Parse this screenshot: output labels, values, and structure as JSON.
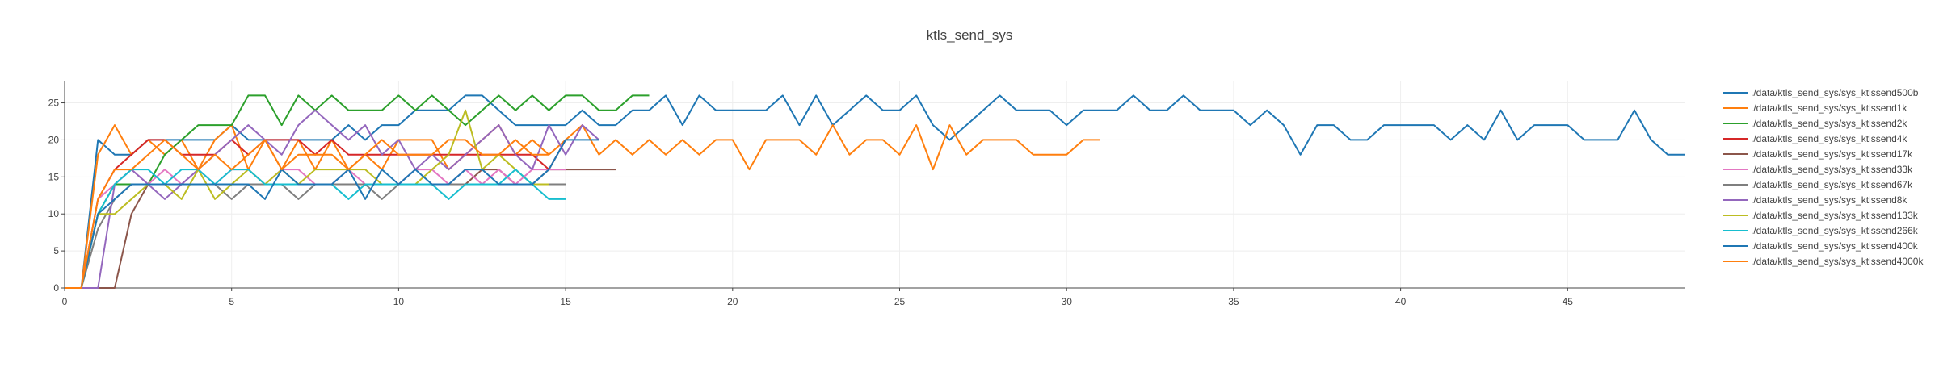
{
  "chart_data": {
    "type": "line",
    "title": "ktls_send_sys",
    "xlabel": "",
    "ylabel": "",
    "xlim": [
      0,
      48.5
    ],
    "ylim": [
      0,
      28
    ],
    "x_ticks": [
      0,
      5,
      10,
      15,
      20,
      25,
      30,
      35,
      40,
      45
    ],
    "y_ticks": [
      0,
      5,
      10,
      15,
      20,
      25
    ],
    "grid": true,
    "legend_position": "right",
    "series": [
      {
        "name": "./data/ktls_send_sys/sys_ktlssend500b",
        "color": "#1f77b4",
        "x": [
          0,
          0.5,
          1,
          1.5,
          2,
          2.5,
          3,
          3.5,
          4,
          4.5,
          5,
          5.5,
          6,
          6.5,
          7,
          7.5,
          8,
          8.5,
          9,
          9.5,
          10,
          10.5,
          11,
          11.5,
          12,
          12.5,
          13,
          13.5,
          14,
          14.5,
          15,
          15.5,
          16,
          16.5,
          17,
          17.5,
          18,
          18.5,
          19,
          19.5,
          20,
          20.5,
          21,
          21.5,
          22,
          22.5,
          23,
          23.5,
          24,
          24.5,
          25,
          25.5,
          26,
          26.5,
          27,
          27.5,
          28,
          28.5,
          29,
          29.5,
          30,
          30.5,
          31,
          31.5,
          32,
          32.5,
          33,
          33.5,
          34,
          34.5,
          35,
          35.5,
          36,
          36.5,
          37,
          37.5,
          38,
          38.5,
          39,
          39.5,
          40,
          40.5,
          41,
          41.5,
          42,
          42.5,
          43,
          43.5,
          44,
          44.5,
          45,
          45.5,
          46,
          46.5,
          47,
          47.5,
          48,
          48.5
        ],
        "y": [
          0,
          0,
          20,
          18,
          18,
          20,
          20,
          20,
          20,
          20,
          22,
          20,
          20,
          20,
          20,
          20,
          20,
          22,
          20,
          22,
          22,
          24,
          24,
          24,
          26,
          26,
          24,
          22,
          22,
          22,
          22,
          24,
          22,
          22,
          24,
          24,
          26,
          22,
          26,
          24,
          24,
          24,
          24,
          26,
          22,
          26,
          22,
          24,
          26,
          24,
          24,
          26,
          22,
          20,
          22,
          24,
          26,
          24,
          24,
          24,
          22,
          24,
          24,
          24,
          26,
          24,
          24,
          26,
          24,
          24,
          24,
          22,
          24,
          22,
          18,
          22,
          22,
          20,
          20,
          22,
          22,
          22,
          22,
          20,
          22,
          20,
          24,
          20,
          22,
          22,
          22,
          20,
          20,
          20,
          24,
          20,
          18,
          18
        ]
      },
      {
        "name": "./data/ktls_send_sys/sys_ktlssend1k",
        "color": "#ff7f0e",
        "x": [
          0,
          0.5,
          1,
          1.5,
          2,
          2.5,
          3,
          3.5,
          4,
          4.5,
          5,
          5.5,
          6,
          6.5,
          7,
          7.5,
          8,
          8.5,
          9,
          9.5,
          10,
          10.5,
          11,
          11.5,
          12,
          12.5,
          13,
          13.5,
          14,
          14.5,
          15,
          15.5,
          16,
          16.5,
          17,
          17.5,
          18,
          18.5,
          19,
          19.5,
          20,
          20.5,
          21,
          21.5,
          22,
          22.5,
          23,
          23.5,
          24,
          24.5,
          25,
          25.5,
          26,
          26.5,
          27,
          27.5,
          28,
          28.5,
          29,
          29.5,
          30,
          30.5,
          31
        ],
        "y": [
          0,
          0,
          18,
          22,
          18,
          20,
          18,
          20,
          16,
          20,
          22,
          16,
          20,
          16,
          20,
          16,
          20,
          16,
          18,
          16,
          20,
          20,
          20,
          16,
          18,
          20,
          22,
          18,
          20,
          18,
          20,
          22,
          18,
          20,
          18,
          20,
          18,
          20,
          18,
          20,
          20,
          16,
          20,
          20,
          20,
          18,
          22,
          18,
          20,
          20,
          18,
          22,
          16,
          22,
          18,
          20,
          20,
          20,
          18,
          18,
          18,
          20,
          20
        ]
      },
      {
        "name": "./data/ktls_send_sys/sys_ktlssend2k",
        "color": "#2ca02c",
        "x": [
          0,
          0.5,
          1,
          1.5,
          2,
          2.5,
          3,
          3.5,
          4,
          4.5,
          5,
          5.5,
          6,
          6.5,
          7,
          7.5,
          8,
          8.5,
          9,
          9.5,
          10,
          10.5,
          11,
          11.5,
          12,
          12.5,
          13,
          13.5,
          14,
          14.5,
          15,
          15.5,
          16,
          16.5,
          17,
          17.5
        ],
        "y": [
          0,
          0,
          10,
          14,
          14,
          14,
          18,
          20,
          22,
          22,
          22,
          26,
          26,
          22,
          26,
          24,
          26,
          24,
          24,
          24,
          26,
          24,
          26,
          24,
          22,
          24,
          26,
          24,
          26,
          24,
          26,
          26,
          24,
          24,
          26,
          26
        ]
      },
      {
        "name": "./data/ktls_send_sys/sys_ktlssend4k",
        "color": "#d62728",
        "x": [
          0,
          0.5,
          1,
          1.5,
          2,
          2.5,
          3,
          3.5,
          4,
          4.5,
          5,
          5.5,
          6,
          6.5,
          7,
          7.5,
          8,
          8.5,
          9,
          9.5,
          10,
          10.5,
          11,
          11.5,
          12,
          12.5,
          13,
          13.5,
          14,
          14.5,
          15
        ],
        "y": [
          0,
          0,
          12,
          16,
          18,
          20,
          20,
          18,
          18,
          18,
          20,
          18,
          20,
          20,
          20,
          18,
          20,
          18,
          18,
          18,
          18,
          18,
          18,
          18,
          18,
          18,
          18,
          18,
          18,
          16,
          20
        ]
      },
      {
        "name": "./data/ktls_send_sys/sys_ktlssend17k",
        "color": "#8c564b",
        "x": [
          0,
          0.5,
          1,
          1.5,
          2,
          2.5,
          3,
          3.5,
          4,
          4.5,
          5,
          5.5,
          6,
          6.5,
          7,
          7.5,
          8,
          8.5,
          9,
          9.5,
          10,
          10.5,
          11,
          11.5,
          12,
          12.5,
          13,
          13.5,
          14,
          14.5,
          15,
          15.5,
          16,
          16.5
        ],
        "y": [
          0,
          0,
          0,
          0,
          10,
          14,
          14,
          14,
          14,
          14,
          14,
          14,
          14,
          14,
          14,
          14,
          14,
          14,
          14,
          14,
          14,
          14,
          14,
          14,
          14,
          16,
          16,
          14,
          14,
          16,
          16,
          16,
          16,
          16
        ]
      },
      {
        "name": "./data/ktls_send_sys/sys_ktlssend33k",
        "color": "#e377c2",
        "x": [
          0,
          0.5,
          1,
          1.5,
          2,
          2.5,
          3,
          3.5,
          4,
          4.5,
          5,
          5.5,
          6,
          6.5,
          7,
          7.5,
          8,
          8.5,
          9,
          9.5,
          10,
          10.5,
          11,
          11.5,
          12,
          12.5,
          13,
          13.5,
          14,
          14.5,
          15
        ],
        "y": [
          0,
          0,
          12,
          14,
          16,
          14,
          16,
          14,
          16,
          14,
          16,
          16,
          14,
          16,
          16,
          14,
          14,
          16,
          14,
          14,
          14,
          16,
          16,
          14,
          16,
          14,
          16,
          14,
          16,
          16,
          16
        ]
      },
      {
        "name": "./data/ktls_send_sys/sys_ktlssend67k",
        "color": "#7f7f7f",
        "x": [
          0,
          0.5,
          1,
          1.5,
          2,
          2.5,
          3,
          3.5,
          4,
          4.5,
          5,
          5.5,
          6,
          6.5,
          7,
          7.5,
          8,
          8.5,
          9,
          9.5,
          10,
          10.5,
          11,
          11.5,
          12,
          12.5,
          13,
          13.5,
          14,
          14.5,
          15
        ],
        "y": [
          0,
          0,
          8,
          12,
          14,
          14,
          14,
          14,
          14,
          14,
          12,
          14,
          14,
          14,
          12,
          14,
          14,
          14,
          14,
          12,
          14,
          14,
          14,
          14,
          14,
          14,
          14,
          14,
          14,
          14,
          14
        ]
      },
      {
        "name": "./data/ktls_send_sys/sys_ktlssend8k",
        "color": "#9467bd",
        "x": [
          0,
          0.5,
          1,
          1.5,
          2,
          2.5,
          3,
          3.5,
          4,
          4.5,
          5,
          5.5,
          6,
          6.5,
          7,
          7.5,
          8,
          8.5,
          9,
          9.5,
          10,
          10.5,
          11,
          11.5,
          12,
          12.5,
          13,
          13.5,
          14,
          14.5,
          15,
          15.5,
          16
        ],
        "y": [
          0,
          0,
          0,
          14,
          16,
          14,
          12,
          14,
          16,
          18,
          20,
          22,
          20,
          18,
          22,
          24,
          22,
          20,
          22,
          18,
          20,
          16,
          18,
          16,
          18,
          20,
          22,
          18,
          16,
          22,
          18,
          22,
          20
        ]
      },
      {
        "name": "./data/ktls_send_sys/sys_ktlssend133k",
        "color": "#bcbd22",
        "x": [
          0,
          0.5,
          1,
          1.5,
          2,
          2.5,
          3,
          3.5,
          4,
          4.5,
          5,
          5.5,
          6,
          6.5,
          7,
          7.5,
          8,
          8.5,
          9,
          9.5,
          10,
          10.5,
          11,
          11.5,
          12,
          12.5,
          13,
          13.5,
          14,
          14.5
        ],
        "y": [
          0,
          0,
          10,
          10,
          12,
          14,
          14,
          12,
          16,
          12,
          14,
          16,
          14,
          16,
          14,
          16,
          16,
          16,
          16,
          14,
          14,
          14,
          16,
          18,
          24,
          16,
          18,
          16,
          14,
          14
        ]
      },
      {
        "name": "./data/ktls_send_sys/sys_ktlssend266k",
        "color": "#17becf",
        "x": [
          0,
          0.5,
          1,
          1.5,
          2,
          2.5,
          3,
          3.5,
          4,
          4.5,
          5,
          5.5,
          6,
          6.5,
          7,
          7.5,
          8,
          8.5,
          9,
          9.5,
          10,
          10.5,
          11,
          11.5,
          12,
          12.5,
          13,
          13.5,
          14,
          14.5,
          15
        ],
        "y": [
          0,
          0,
          10,
          14,
          16,
          16,
          14,
          16,
          16,
          14,
          16,
          16,
          14,
          14,
          14,
          14,
          14,
          12,
          14,
          14,
          14,
          14,
          14,
          12,
          14,
          14,
          14,
          16,
          14,
          12,
          12
        ]
      },
      {
        "name": "./data/ktls_send_sys/sys_ktlssend400k",
        "color": "#1f77b4",
        "x": [
          0,
          0.5,
          1,
          1.5,
          2,
          2.5,
          3,
          3.5,
          4,
          4.5,
          5,
          5.5,
          6,
          6.5,
          7,
          7.5,
          8,
          8.5,
          9,
          9.5,
          10,
          10.5,
          11,
          11.5,
          12,
          12.5,
          13,
          13.5,
          14,
          14.5,
          15,
          15.5,
          16
        ],
        "y": [
          0,
          0,
          10,
          12,
          14,
          14,
          14,
          14,
          14,
          14,
          14,
          14,
          12,
          16,
          14,
          14,
          14,
          16,
          12,
          16,
          14,
          16,
          14,
          14,
          16,
          16,
          14,
          14,
          14,
          16,
          20,
          20,
          20
        ]
      },
      {
        "name": "./data/ktls_send_sys/sys_ktlssend4000k",
        "color": "#ff7f0e",
        "x": [
          0,
          0.5,
          1,
          1.5,
          2,
          2.5,
          3,
          3.5,
          4,
          4.5,
          5,
          5.5,
          6,
          6.5,
          7,
          7.5,
          8,
          8.5,
          9,
          9.5,
          10,
          10.5,
          11,
          11.5,
          12,
          12.5,
          13,
          13.5,
          14,
          14.5
        ],
        "y": [
          0,
          0,
          12,
          16,
          16,
          18,
          20,
          18,
          16,
          18,
          16,
          18,
          20,
          16,
          18,
          18,
          18,
          16,
          18,
          20,
          18,
          18,
          18,
          20,
          20,
          18,
          18,
          20,
          18,
          18
        ]
      }
    ]
  }
}
